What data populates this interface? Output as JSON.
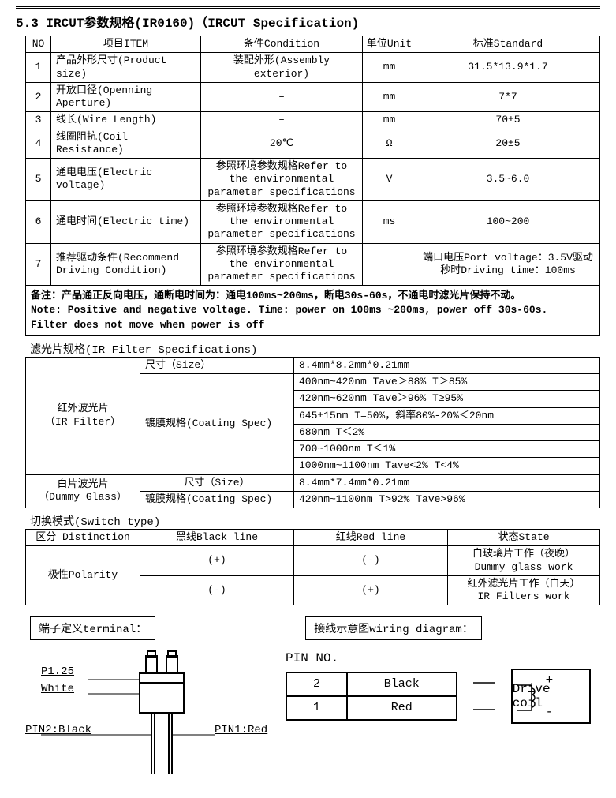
{
  "title": "5.3 IRCUT参数规格(IR0160)（IRCUT Specification)",
  "main_table": {
    "headers": {
      "no": "NO",
      "item": "项目ITEM",
      "cond": "条件Condition",
      "unit": "单位Unit",
      "std": "标准Standard"
    },
    "rows": [
      {
        "no": "1",
        "item": "产品外形尺寸(Product size)",
        "cond": "装配外形(Assembly exterior)",
        "unit": "mm",
        "std": "31.5*13.9*1.7"
      },
      {
        "no": "2",
        "item": "开放口径(Openning Aperture)",
        "cond": "–",
        "unit": "mm",
        "std": "7*7"
      },
      {
        "no": "3",
        "item": "线长(Wire Length)",
        "cond": "–",
        "unit": "mm",
        "std": "70±5"
      },
      {
        "no": "4",
        "item": "线圈阻抗(Coil Resistance)",
        "cond": "20℃",
        "unit": "Ω",
        "std": "20±5"
      },
      {
        "no": "5",
        "item": "通电电压(Electric voltage)",
        "cond": "参照环境参数规格Refer to the environmental parameter specifications",
        "unit": "V",
        "std": "3.5~6.0"
      },
      {
        "no": "6",
        "item": "通电时间(Electric time)",
        "cond": "参照环境参数规格Refer to the environmental parameter specifications",
        "unit": "ms",
        "std": "100~200"
      },
      {
        "no": "7",
        "item": "推荐驱动条件(Recommend Driving Condition)",
        "cond": "参照环境参数规格Refer to the environmental parameter specifications",
        "unit": "–",
        "std": "端口电压Port voltage：3.5V驱动秒时Driving time：100ms"
      }
    ],
    "note": "备注：产品通正反向电压，通断电时间为：通电100ms~200ms，断电30s-60s，不通电时滤光片保持不动。\nNote: Positive and negative voltage. Time: power on 100ms ~200ms, power off 30s-60s.\nFilter does not move when power is off"
  },
  "filter_title": "滤光片规格(IR Filter Specifications)",
  "filter_table": {
    "ir_label": "红外波光片\n（IR Filter）",
    "dummy_label": "白片波光片\n（Dummy Glass）",
    "size_label": "尺寸（Size）",
    "coating_label": "镀膜规格(Coating Spec)",
    "ir_size": "8.4mm*8.2mm*0.21mm",
    "ir_coating": [
      "400nm~420nm   Tave＞88% T＞85%",
      "420nm~620nm   Tave＞96% T≥95%",
      "645±15nm    T=50%，斜率80%-20%＜20nm",
      "680nm       T＜2%",
      "700~1000nm   T＜1%",
      "1000nm~1100nm Tave<2%  T<4%"
    ],
    "dummy_size": "8.4mm*7.4mm*0.21mm",
    "dummy_coating": "420nm~1100nm   T>92%  Tave>96%"
  },
  "switch_title": "切换模式(Switch type)",
  "switch_table": {
    "headers": {
      "dist": "区分 Distinction",
      "black": "黑线Black line",
      "red": "红线Red line",
      "state": "状态State"
    },
    "polarity_label": "极性Polarity",
    "rows": [
      {
        "black": "(+)",
        "red": "(-)",
        "state": "白玻璃片工作（夜晚）\nDummy glass work"
      },
      {
        "black": "(-)",
        "red": "(+)",
        "state": "红外滤光片工作（白天）\nIR Filters work"
      }
    ]
  },
  "terminal_label": "端子定义terminal：",
  "wiring_label": "接线示意图wiring diagram：",
  "terminal": {
    "p125": "P1.25",
    "white": "White",
    "pin2": "PIN2:Black",
    "pin1": "PIN1:Red"
  },
  "wiring": {
    "pin_no_label": "PIN NO.",
    "pins": [
      {
        "n": "2",
        "c": "Black"
      },
      {
        "n": "1",
        "c": "Red"
      }
    ],
    "drive_label": "Drive coil",
    "plus": "+",
    "minus": "-"
  },
  "colors": {
    "border": "#000000",
    "bg": "#ffffff",
    "text": "#000000"
  }
}
